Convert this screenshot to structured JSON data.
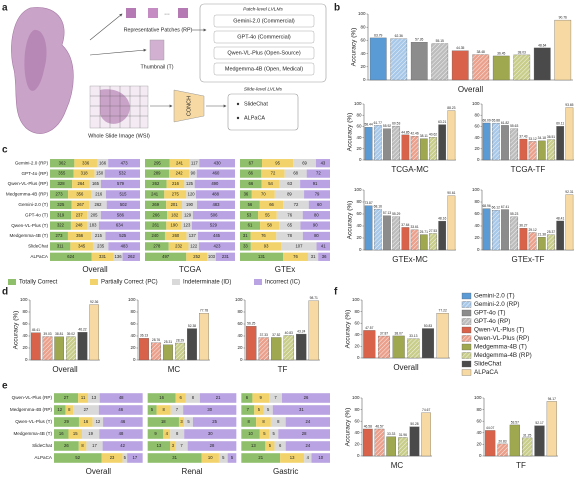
{
  "panel_labels": [
    "a",
    "b",
    "c",
    "d",
    "e",
    "f"
  ],
  "diagram": {
    "patch_level_title": "Patch-level LVLMs",
    "rp_label": "Representative Patches (RP)",
    "thumbnail_label": "Thumbnail (T)",
    "patch_models": [
      "Gemini-2.0 (Commercial)",
      "GPT-4o (Commercial)",
      "Qwen-VL-Plus (Open-Source)",
      "Medgemma-4B (Open, Medical)"
    ],
    "wsi_label": "Whole Slide Image (WSI)",
    "encoder": "CONCH",
    "slide_level_title": "Slide-level LVLMs",
    "slide_models": [
      "SlideChat",
      "ALPaCA"
    ]
  },
  "legend": [
    {
      "name": "Gemini-2.0 (T)",
      "color": "#5b9bd5",
      "hatch": false
    },
    {
      "name": "Gemini-2.0 (RP)",
      "color": "#a7c8e8",
      "hatch": true
    },
    {
      "name": "GPT-4o (T)",
      "color": "#8c8c8c",
      "hatch": false
    },
    {
      "name": "GPT-4o (RP)",
      "color": "#bdbdbd",
      "hatch": true
    },
    {
      "name": "Qwen-VL-Plus (T)",
      "color": "#d9634a",
      "hatch": false
    },
    {
      "name": "Qwen-VL-Plus (RP)",
      "color": "#eba08c",
      "hatch": true
    },
    {
      "name": "Medgemma-4B (T)",
      "color": "#9fa84f",
      "hatch": false
    },
    {
      "name": "Medgemma-4B (RP)",
      "color": "#c8cd8a",
      "hatch": true
    },
    {
      "name": "SlideChat",
      "color": "#4a4a4a",
      "hatch": false
    },
    {
      "name": "ALPaCA",
      "color": "#f6d9a3",
      "hatch": false
    }
  ],
  "chart_data": [
    {
      "type": "bar",
      "panel": "b",
      "title": "Overall",
      "ylabel": "Accuracy (%)",
      "ylim": [
        0,
        100
      ],
      "yticks": [
        0,
        20,
        40,
        60,
        80,
        100
      ],
      "values": [
        63.79,
        62.36,
        57.26,
        55.15,
        44.35,
        38.48,
        36.45,
        38.03,
        48.64,
        90.76
      ],
      "colors": [
        "#5b9bd5",
        "#a7c8e8",
        "#8c8c8c",
        "#bdbdbd",
        "#d9634a",
        "#eba08c",
        "#9fa84f",
        "#c8cd8a",
        "#4a4a4a",
        "#f6d9a3"
      ],
      "hatch": [
        false,
        true,
        false,
        true,
        false,
        true,
        false,
        true,
        false,
        false
      ]
    },
    {
      "type": "bar",
      "panel": "b",
      "title": "TCGA-MC",
      "ylabel": "Accuracy (%)",
      "ylim": [
        0,
        100
      ],
      "yticks": [
        0,
        20,
        40,
        60,
        80,
        100
      ],
      "values": [
        58.44,
        61.77,
        55.92,
        60.53,
        44.85,
        42.46,
        38.11,
        40.62,
        63.21,
        88.23
      ],
      "colors": [
        "#5b9bd5",
        "#a7c8e8",
        "#8c8c8c",
        "#bdbdbd",
        "#d9634a",
        "#eba08c",
        "#9fa84f",
        "#c8cd8a",
        "#4a4a4a",
        "#f6d9a3"
      ],
      "hatch": [
        false,
        true,
        false,
        true,
        false,
        true,
        false,
        true,
        false,
        false
      ]
    },
    {
      "type": "bar",
      "panel": "b",
      "title": "TCGA-TF",
      "ylim": [
        0,
        100
      ],
      "yticks": [
        0,
        20,
        40,
        60,
        80,
        100
      ],
      "values": [
        66.09,
        65.88,
        61.82,
        55.63,
        37.43,
        33.12,
        34.18,
        36.51,
        60.11,
        93.65
      ],
      "colors": [
        "#5b9bd5",
        "#a7c8e8",
        "#8c8c8c",
        "#bdbdbd",
        "#d9634a",
        "#eba08c",
        "#9fa84f",
        "#c8cd8a",
        "#4a4a4a",
        "#f6d9a3"
      ],
      "hatch": [
        false,
        true,
        false,
        true,
        false,
        true,
        false,
        true,
        false,
        false
      ]
    },
    {
      "type": "bar",
      "panel": "b",
      "title": "GTEx-MC",
      "ylabel": "Accuracy (%)",
      "ylim": [
        0,
        100
      ],
      "yticks": [
        0,
        20,
        40,
        60,
        80,
        100
      ],
      "values": [
        73.87,
        68.16,
        57.13,
        55.29,
        37.64,
        33.61,
        25.71,
        27.53,
        48.16,
        90.61
      ],
      "colors": [
        "#5b9bd5",
        "#a7c8e8",
        "#8c8c8c",
        "#bdbdbd",
        "#d9634a",
        "#eba08c",
        "#9fa84f",
        "#c8cd8a",
        "#4a4a4a",
        "#f6d9a3"
      ],
      "hatch": [
        false,
        true,
        false,
        true,
        false,
        true,
        false,
        true,
        false,
        false
      ]
    },
    {
      "type": "bar",
      "panel": "b",
      "title": "GTEx-TF",
      "ylim": [
        0,
        100
      ],
      "yticks": [
        0,
        20,
        40,
        60,
        80,
        100
      ],
      "values": [
        68.96,
        66.12,
        67.41,
        55.23,
        36.27,
        29.12,
        21.38,
        25.37,
        48.41,
        92.31
      ],
      "colors": [
        "#5b9bd5",
        "#a7c8e8",
        "#8c8c8c",
        "#bdbdbd",
        "#d9634a",
        "#eba08c",
        "#9fa84f",
        "#c8cd8a",
        "#4a4a4a",
        "#f6d9a3"
      ],
      "hatch": [
        false,
        true,
        false,
        true,
        false,
        true,
        false,
        true,
        false,
        false
      ]
    },
    {
      "type": "stacked-bar",
      "panel": "c",
      "rows": [
        "Gemini-2.0 (RP)",
        "GPT-4o (RP)",
        "Qwen-VL-Plus (RP)",
        "Medgemma-4B (RP)",
        "Gemini-2.0 (T)",
        "GPT-4o (T)",
        "Qwen-VL-Plus (T)",
        "Medgemma-4B (T)",
        "SlideChat",
        "ALPaCA"
      ],
      "legend": [
        "Totally Correct",
        "Partially Correct (PC)",
        "Indeterminate (ID)",
        "Incorrect (IC)"
      ],
      "colors": [
        "#8fbf6a",
        "#f2d36b",
        "#d9d9d9",
        "#b9a3e3"
      ],
      "groups": [
        {
          "name": "Overall",
          "values": [
            [
              362,
              336,
              166,
              473
            ],
            [
              355,
              318,
              150,
              532
            ],
            [
              328,
              264,
              165,
              579
            ],
            [
              273,
              356,
              216,
              515
            ],
            [
              325,
              267,
              262,
              502
            ],
            [
              319,
              237,
              205,
              586
            ],
            [
              322,
              248,
              183,
              634
            ],
            [
              273,
              356,
              215,
              525
            ],
            [
              311,
              345,
              235,
              483
            ],
            [
              624,
              331,
              136,
              262
            ]
          ]
        },
        {
          "name": "TCGA",
          "values": [
            [
              295,
              241,
              117,
              430
            ],
            [
              289,
              242,
              90,
              460
            ],
            [
              262,
              216,
              125,
              490
            ],
            [
              241,
              275,
              120,
              488
            ],
            [
              269,
              201,
              190,
              483
            ],
            [
              266,
              182,
              129,
              506
            ],
            [
              261,
              190,
              123,
              529
            ],
            [
              240,
              260,
              137,
              445
            ],
            [
              278,
              232,
              122,
              423
            ],
            [
              497,
              252,
              103,
              231
            ]
          ]
        },
        {
          "name": "GTEx",
          "values": [
            [
              67,
              95,
              69,
              43
            ],
            [
              66,
              72,
              68,
              72
            ],
            [
              66,
              54,
              63,
              91
            ],
            [
              36,
              70,
              89,
              79
            ],
            [
              56,
              66,
              72,
              60
            ],
            [
              53,
              55,
              76,
              80
            ],
            [
              61,
              58,
              65,
              90
            ],
            [
              31,
              76,
              78,
              80
            ],
            [
              33,
              93,
              107,
              41
            ],
            [
              131,
              76,
              31,
              36
            ]
          ]
        }
      ]
    },
    {
      "type": "bar",
      "panel": "d",
      "title": "Overall",
      "ylabel": "Accuracy (%)",
      "ylim": [
        0,
        100
      ],
      "yticks": [
        0,
        20,
        40,
        60,
        80,
        100
      ],
      "values": [
        45.41,
        39.03,
        38.81,
        39.02,
        46.22,
        92.36
      ],
      "colors": [
        "#d9634a",
        "#eba08c",
        "#9fa84f",
        "#c8cd8a",
        "#4a4a4a",
        "#f6d9a3"
      ],
      "hatch": [
        false,
        true,
        false,
        true,
        false,
        false
      ]
    },
    {
      "type": "bar",
      "panel": "d",
      "title": "MC",
      "ylim": [
        0,
        100
      ],
      "yticks": [
        0,
        20,
        40,
        60,
        80,
        100
      ],
      "values": [
        36.13,
        28.76,
        25.31,
        28.29,
        52.38,
        77.78
      ],
      "colors": [
        "#d9634a",
        "#eba08c",
        "#9fa84f",
        "#c8cd8a",
        "#4a4a4a",
        "#f6d9a3"
      ],
      "hatch": [
        false,
        true,
        false,
        true,
        false,
        false
      ]
    },
    {
      "type": "bar",
      "panel": "d",
      "title": "TF",
      "ylim": [
        0,
        100
      ],
      "yticks": [
        0,
        20,
        40,
        60,
        80,
        100
      ],
      "values": [
        56.25,
        37.33,
        37.52,
        40.83,
        43.24,
        98.71
      ],
      "colors": [
        "#d9634a",
        "#eba08c",
        "#9fa84f",
        "#c8cd8a",
        "#4a4a4a",
        "#f6d9a3"
      ],
      "hatch": [
        false,
        true,
        false,
        true,
        false,
        false
      ]
    },
    {
      "type": "stacked-bar",
      "panel": "e",
      "rows": [
        "Qwen-VL-Plus (RP)",
        "Medgemma-4B (RP)",
        "Qwen-VL-Plus (T)",
        "Medgemma-4B (T)",
        "SlideChat",
        "ALPaCA"
      ],
      "colors": [
        "#8fbf6a",
        "#f2d36b",
        "#d9d9d9",
        "#b9a3e3"
      ],
      "groups": [
        {
          "name": "Overall",
          "values": [
            [
              27,
              11,
              13,
              48
            ],
            [
              12,
              8,
              27,
              46
            ],
            [
              29,
              16,
              12,
              46
            ],
            [
              16,
              15,
              19,
              48
            ],
            [
              26,
              8,
              17,
              42
            ],
            [
              52,
              23,
              5,
              17
            ]
          ]
        },
        {
          "name": "Renal",
          "values": [
            [
              16,
              6,
              8,
              21
            ],
            [
              5,
              8,
              7,
              30
            ],
            [
              18,
              3,
              5,
              25
            ],
            [
              9,
              4,
              8,
              30
            ],
            [
              13,
              3,
              7,
              28
            ],
            [
              31,
              10,
              5,
              5
            ]
          ]
        },
        {
          "name": "Gastric",
          "values": [
            [
              6,
              9,
              7,
              26
            ],
            [
              7,
              5,
              5,
              31
            ],
            [
              8,
              8,
              8,
              24
            ],
            [
              10,
              5,
              5,
              28
            ],
            [
              13,
              5,
              6,
              24
            ],
            [
              21,
              13,
              4,
              10
            ]
          ]
        }
      ]
    },
    {
      "type": "bar",
      "panel": "f",
      "title": "Overall",
      "ylabel": "Accuracy (%)",
      "ylim": [
        0,
        100
      ],
      "yticks": [
        0,
        20,
        40,
        60,
        80,
        100
      ],
      "values": [
        47.57,
        37.87,
        38.07,
        33.13,
        50.83,
        77.22
      ],
      "colors": [
        "#d9634a",
        "#eba08c",
        "#9fa84f",
        "#c8cd8a",
        "#4a4a4a",
        "#f6d9a3"
      ],
      "hatch": [
        false,
        true,
        false,
        true,
        false,
        false
      ]
    },
    {
      "type": "bar",
      "panel": "f",
      "title": "MC",
      "ylabel": "Accuracy (%)",
      "ylim": [
        0,
        100
      ],
      "yticks": [
        0,
        20,
        40,
        60,
        80,
        100
      ],
      "values": [
        46.58,
        46.57,
        33.33,
        31.96,
        50.28,
        74.67
      ],
      "colors": [
        "#d9634a",
        "#eba08c",
        "#9fa84f",
        "#c8cd8a",
        "#4a4a4a",
        "#f6d9a3"
      ],
      "hatch": [
        false,
        true,
        false,
        true,
        false,
        false
      ]
    },
    {
      "type": "bar",
      "panel": "f",
      "title": "TF",
      "ylim": [
        0,
        100
      ],
      "yticks": [
        0,
        20,
        40,
        60,
        80,
        100
      ],
      "values": [
        44.07,
        20.83,
        53.57,
        31.25,
        52.17,
        94.17
      ],
      "colors": [
        "#d9634a",
        "#eba08c",
        "#9fa84f",
        "#c8cd8a",
        "#4a4a4a",
        "#f6d9a3"
      ],
      "hatch": [
        false,
        true,
        false,
        true,
        false,
        false
      ]
    }
  ]
}
